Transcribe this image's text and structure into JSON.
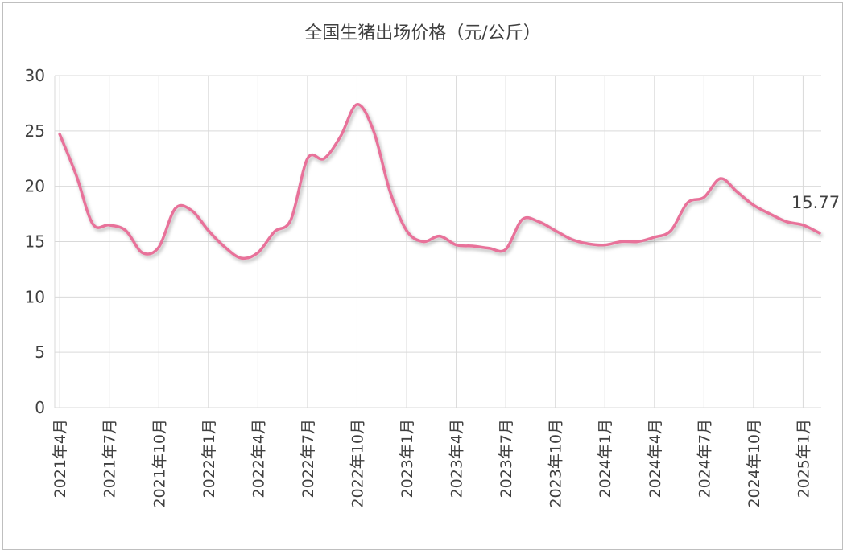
{
  "chart_data": {
    "type": "line",
    "title": "全国生猪出场价格（元/公斤）",
    "xlabel": "",
    "ylabel": "",
    "ylim": [
      0,
      30
    ],
    "yticks": [
      0,
      5,
      10,
      15,
      20,
      25,
      30
    ],
    "grid": true,
    "legend": "none",
    "x_tick_labels": [
      "2021年4月",
      "2021年7月",
      "2021年10月",
      "2022年1月",
      "2022年4月",
      "2022年7月",
      "2022年10月",
      "2023年1月",
      "2023年4月",
      "2023年7月",
      "2023年10月",
      "2024年1月",
      "2024年4月",
      "2024年7月",
      "2024年10月",
      "2025年1月"
    ],
    "x": [
      "2021-04",
      "2021-05",
      "2021-06",
      "2021-07",
      "2021-08",
      "2021-09",
      "2021-10",
      "2021-11",
      "2021-12",
      "2022-01",
      "2022-02",
      "2022-03",
      "2022-04",
      "2022-05",
      "2022-06",
      "2022-07",
      "2022-08",
      "2022-09",
      "2022-10",
      "2022-11",
      "2022-12",
      "2023-01",
      "2023-02",
      "2023-03",
      "2023-04",
      "2023-05",
      "2023-06",
      "2023-07",
      "2023-08",
      "2023-09",
      "2023-10",
      "2023-11",
      "2023-12",
      "2024-01",
      "2024-02",
      "2024-03",
      "2024-04",
      "2024-05",
      "2024-06",
      "2024-07",
      "2024-08",
      "2024-09",
      "2024-10",
      "2024-11",
      "2024-12",
      "2025-01",
      "2025-02"
    ],
    "series": [
      {
        "color": "#e8729a",
        "values": [
          24.7,
          21.0,
          16.6,
          16.5,
          16.0,
          14.0,
          14.5,
          18.0,
          17.8,
          16.0,
          14.5,
          13.5,
          14.0,
          15.9,
          17.0,
          22.5,
          22.5,
          24.5,
          27.4,
          25.0,
          19.5,
          16.0,
          15.0,
          15.5,
          14.7,
          14.6,
          14.4,
          14.3,
          17.0,
          16.8,
          16.0,
          15.2,
          14.8,
          14.7,
          15.0,
          15.0,
          15.4,
          16.0,
          18.5,
          19.0,
          20.7,
          19.5,
          18.3,
          17.5,
          16.8,
          16.5,
          15.77
        ]
      }
    ],
    "annotations": [
      {
        "label": "15.77",
        "index": 46
      }
    ]
  },
  "colors": {
    "line": "#e8729a",
    "grid": "#d9d9d9",
    "text": "#404040",
    "frame": "#bfbfbf"
  }
}
